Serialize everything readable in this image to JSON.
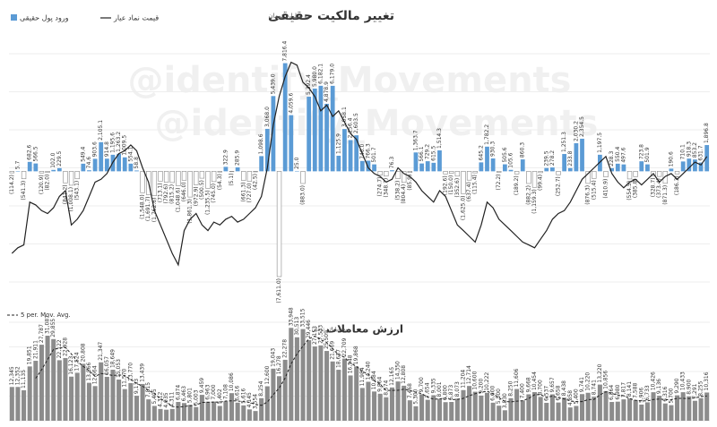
{
  "watermark": "@identify_Movements",
  "chart_data": [
    {
      "type": "bar",
      "title": "تغییر مالکیت حقیقی",
      "subtitle": "به میلیارد تومان",
      "legend": "top-left",
      "grid": true,
      "ylim": [
        -8000,
        8500
      ],
      "y2lim": [
        20,
        100
      ],
      "series": [
        {
          "name": "ورود پول حقیقی",
          "color": "#5b9bd5",
          "negative_color": "#ffffff",
          "values": [
            -114.2,
            5.7,
            -541.3,
            682.6,
            566.5,
            -120.9,
            -82.0,
            102.0,
            229.5,
            -841.2,
            -1008.1,
            -543.1,
            549.4,
            74.6,
            903.6,
            2105.1,
            914.8,
            1195.6,
            1263.2,
            1009.5,
            554.1,
            58.8,
            -1548.0,
            -1691.7,
            -1762.6,
            -713.1,
            -792.6,
            -815.2,
            -1048.6,
            -646.0,
            -1861.3,
            -972.9,
            -500.5,
            -1235.5,
            -745.0,
            -54.3,
            322.9,
            -5.1,
            285.9,
            -661.3,
            -727.0,
            -42.5,
            1098.6,
            3068.0,
            5439.0,
            -7611.0,
            7816.4,
            4059.6,
            25.0,
            -883.0,
            5392.4,
            5980.0,
            6182.1,
            4878.9,
            6179.0,
            1125.9,
            3058.1,
            2256.4,
            2603.5,
            746.0,
            766.3,
            501.7,
            -274.7,
            -348.7,
            76.3,
            -538.2,
            -804.4,
            -85.9,
            1363.7,
            566.1,
            729.2,
            615.5,
            1514.3,
            -192.6,
            -150.0,
            -352.6,
            -1625.0,
            -637.4,
            -115.4,
            645.2,
            1782.2,
            930.3,
            -72.2,
            505.6,
            105.6,
            -189.2,
            860.3,
            -882.2,
            -1159.3,
            -99.4,
            239.5,
            278.2,
            -252.7,
            1251.3,
            233.8,
            2030.2,
            2354.5,
            -876.3,
            -515.4,
            1197.5,
            -410.9,
            228.3,
            550.4,
            497.6,
            -554.5,
            -385.8,
            723.8,
            501.9,
            -328.7,
            -373.4,
            -871.3,
            190.6,
            -186.3,
            710.1,
            918.3,
            853.2,
            631.7,
            1896.8
          ],
          "value_labels": [
            "(114.2)",
            "5.7",
            "(541.3)",
            "682.6",
            "566.5",
            "(120.9)",
            "(82.0)",
            "102.0",
            "229.5",
            "(841.2)",
            "(1,008.1)",
            "(543.1)",
            "549.4",
            "74.6",
            "903.6",
            "2,105.1",
            "914.8",
            "1,195.6",
            "1,263.2",
            "1,009.5",
            "554.1",
            "58.8",
            "(1,548.0)",
            "(1,691.7)",
            "(1,762.6)",
            "(713.1)",
            "(792.6)",
            "(815.2)",
            "(1,048.6)",
            "(646.0)",
            "(1,861.3)",
            "(972.9)",
            "(500.5)",
            "(1,235.5)",
            "(745.0)",
            "(54.3)",
            "322.9",
            "(5.1)",
            "285.9",
            "(661.3)",
            "(727.0)",
            "(42.5)",
            "1,098.6",
            "3,068.0",
            "5,439.0",
            "(7,611.0)",
            "7,816.4",
            "4,059.6",
            "25.0",
            "(883.0)",
            "5,392.4",
            "5,980.0",
            "6,182.1",
            "4,878.9",
            "6,179.0",
            "1,125.9",
            "3,058.1",
            "2,256.4",
            "2,603.5",
            "746.0",
            "766.3",
            "501.7",
            "(274.7)",
            "(348.7)",
            "76.3",
            "(538.2)",
            "(804.4)",
            "(85.9)",
            "1,363.7",
            "566.1",
            "729.2",
            "615.5",
            "1,514.3",
            "(192.6)",
            "(150.0)",
            "(352.6)",
            "(1,625.0)",
            "(637.4)",
            "(115.4)",
            "645.2",
            "1,782.2",
            "930.3",
            "(72.2)",
            "505.6",
            "105.6",
            "(189.2)",
            "860.3",
            "(882.2)",
            "(1,159.3)",
            "(99.4)",
            "239.5",
            "278.2",
            "(252.7)",
            "1,251.3",
            "233.8",
            "2,030.2",
            "2,354.5",
            "(876.3)",
            "(515.4)",
            "1,197.5",
            "(410.9)",
            "228.3",
            "550.4",
            "497.6",
            "(554.5)",
            "(385.8)",
            "723.8",
            "501.9",
            "(328.7)",
            "(373.4)",
            "(871.3)",
            "190.6",
            "(186.3)",
            "710.1",
            "918.3",
            "853.2",
            "631.7",
            "1,896.8"
          ]
        },
        {
          "name": "قیمت نماد عیار",
          "type": "line",
          "axis": "y2",
          "color": "#222222",
          "values": [
            30,
            32,
            33,
            48,
            47,
            45,
            44,
            46,
            50,
            52,
            40,
            42,
            45,
            50,
            55,
            56,
            58,
            62,
            65,
            66,
            68,
            66,
            60,
            55,
            45,
            40,
            35,
            30,
            26,
            38,
            42,
            44,
            40,
            38,
            41,
            40,
            42,
            43,
            41,
            42,
            44,
            46,
            50,
            60,
            75,
            85,
            92,
            97,
            96,
            90,
            88,
            85,
            80,
            82,
            78,
            80,
            76,
            72,
            70,
            65,
            60,
            58,
            57,
            55,
            56,
            60,
            58,
            57,
            55,
            52,
            50,
            48,
            52,
            50,
            45,
            40,
            38,
            36,
            34,
            40,
            48,
            46,
            42,
            40,
            38,
            36,
            34,
            33,
            32,
            35,
            38,
            42,
            44,
            45,
            48,
            52,
            56,
            58,
            60,
            62,
            64,
            58,
            55,
            53,
            55,
            56,
            54,
            56,
            58,
            55,
            57,
            58,
            56,
            58,
            60,
            62,
            61,
            64
          ]
        }
      ]
    },
    {
      "type": "bar",
      "title": "ارزش معاملات",
      "subtitle": "به میلیارد تومان",
      "color": "#8c8c8c",
      "grid": true,
      "ylim": [
        0,
        36000
      ],
      "trendline": {
        "name": "5 per. Mov. Avg.",
        "period": 5,
        "color": "#222222"
      },
      "values": [
        12345,
        12352,
        11135,
        19851,
        21911,
        27787,
        31087,
        29855,
        22122,
        22928,
        16123,
        17524,
        20808,
        13866,
        12664,
        21347,
        16057,
        18649,
        15053,
        11570,
        13770,
        9133,
        13439,
        7815,
        5405,
        4312,
        4035,
        4311,
        6874,
        6463,
        5801,
        5003,
        9459,
        6963,
        7000,
        5402,
        7108,
        10086,
        6616,
        5616,
        4145,
        3554,
        8254,
        12600,
        19043,
        16278,
        22278,
        33948,
        30513,
        33515,
        29446,
        27153,
        27533,
        25509,
        21669,
        18637,
        22709,
        16548,
        19868,
        11984,
        14240,
        10684,
        9864,
        8574,
        12165,
        14350,
        12808,
        7468,
        5300,
        9700,
        7654,
        9335,
        8001,
        6800,
        6873,
        8073,
        11204,
        12714,
        10600,
        9200,
        10222,
        6600,
        5500,
        3830,
        8250,
        11606,
        7400,
        9668,
        10454,
        8700,
        6537,
        9657,
        6658,
        8438,
        4858,
        5400,
        9741,
        10220,
        8741,
        13220,
        10856,
        6864,
        6980,
        7817,
        8141,
        7588,
        5906,
        6733,
        10426,
        9136,
        6316,
        5700,
        9290,
        10433,
        8900,
        7291,
        8255,
        10316
      ],
      "value_labels": [
        "12,345",
        "12,352",
        "11,135",
        "19,851",
        "21,911",
        "27,787",
        "31,087",
        "29,855",
        "22,122",
        "22,928",
        "16,123",
        "17,524",
        "20,808",
        "13,866",
        "12,664",
        "21,347",
        "16,057",
        "18,649",
        "15,053",
        "11,570",
        "13,770",
        "9,133",
        "13,439",
        "7,815",
        "5,405",
        "4,312",
        "4,035",
        "4,311",
        "6,874",
        "6,463",
        "5,801",
        "5,003",
        "9,459",
        "6,963",
        "7,000",
        "5,402",
        "7,108",
        "10,086",
        "6,616",
        "5,616",
        "4,145",
        "3,554",
        "8,254",
        "12,600",
        "19,043",
        "16,278",
        "22,278",
        "33,948",
        "30,513",
        "33,515",
        "29,446",
        "27,153",
        "27,533",
        "25,509",
        "21,669",
        "18,637",
        "22,709",
        "16,548",
        "19,868",
        "11,984",
        "14,240",
        "10,684",
        "9,864",
        "8,574",
        "12,165",
        "14,350",
        "12,808",
        "7,468",
        "5,300",
        "9,700",
        "7,654",
        "9,335",
        "8,001",
        "6,800",
        "6,873",
        "8,073",
        "11,204",
        "12,714",
        "10,600",
        "9,200",
        "10,222",
        "6,600",
        "5,500",
        "3,830",
        "8,250",
        "11,606",
        "7,400",
        "9,668",
        "10,454",
        "8,700",
        "6,537",
        "9,657",
        "6,658",
        "8,438",
        "4,858",
        "5,400",
        "9,741",
        "10,220",
        "8,741",
        "13,220",
        "10,856",
        "6,864",
        "6,980",
        "7,817",
        "8,141",
        "7,588",
        "5,906",
        "6,733",
        "10,426",
        "9,136",
        "6,316",
        "5,700",
        "9,290",
        "10,433",
        "8,900",
        "7,291",
        "8,255",
        "10,316"
      ]
    }
  ]
}
